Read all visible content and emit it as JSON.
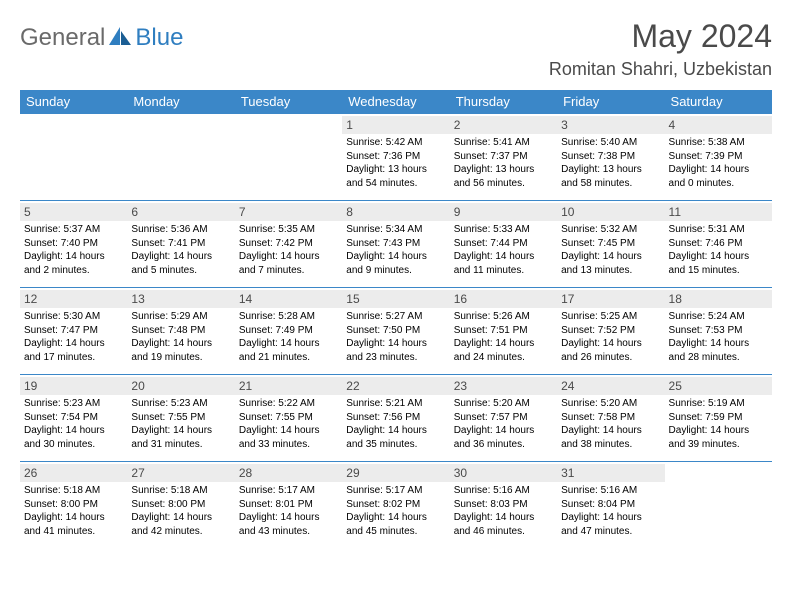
{
  "logo": {
    "general": "General",
    "blue": "Blue"
  },
  "title": "May 2024",
  "location": "Romitan Shahri, Uzbekistan",
  "colors": {
    "header_bg": "#3b87c8",
    "header_text": "#ffffff",
    "daynum_bg": "#ececec",
    "border": "#3b87c8",
    "logo_gray": "#6a6a6a",
    "logo_blue": "#2f7ec0",
    "title_color": "#4a4a4a"
  },
  "days_of_week": [
    "Sunday",
    "Monday",
    "Tuesday",
    "Wednesday",
    "Thursday",
    "Friday",
    "Saturday"
  ],
  "weeks": [
    [
      {
        "n": "",
        "lines": []
      },
      {
        "n": "",
        "lines": []
      },
      {
        "n": "",
        "lines": []
      },
      {
        "n": "1",
        "lines": [
          "Sunrise: 5:42 AM",
          "Sunset: 7:36 PM",
          "Daylight: 13 hours and 54 minutes."
        ]
      },
      {
        "n": "2",
        "lines": [
          "Sunrise: 5:41 AM",
          "Sunset: 7:37 PM",
          "Daylight: 13 hours and 56 minutes."
        ]
      },
      {
        "n": "3",
        "lines": [
          "Sunrise: 5:40 AM",
          "Sunset: 7:38 PM",
          "Daylight: 13 hours and 58 minutes."
        ]
      },
      {
        "n": "4",
        "lines": [
          "Sunrise: 5:38 AM",
          "Sunset: 7:39 PM",
          "Daylight: 14 hours and 0 minutes."
        ]
      }
    ],
    [
      {
        "n": "5",
        "lines": [
          "Sunrise: 5:37 AM",
          "Sunset: 7:40 PM",
          "Daylight: 14 hours and 2 minutes."
        ]
      },
      {
        "n": "6",
        "lines": [
          "Sunrise: 5:36 AM",
          "Sunset: 7:41 PM",
          "Daylight: 14 hours and 5 minutes."
        ]
      },
      {
        "n": "7",
        "lines": [
          "Sunrise: 5:35 AM",
          "Sunset: 7:42 PM",
          "Daylight: 14 hours and 7 minutes."
        ]
      },
      {
        "n": "8",
        "lines": [
          "Sunrise: 5:34 AM",
          "Sunset: 7:43 PM",
          "Daylight: 14 hours and 9 minutes."
        ]
      },
      {
        "n": "9",
        "lines": [
          "Sunrise: 5:33 AM",
          "Sunset: 7:44 PM",
          "Daylight: 14 hours and 11 minutes."
        ]
      },
      {
        "n": "10",
        "lines": [
          "Sunrise: 5:32 AM",
          "Sunset: 7:45 PM",
          "Daylight: 14 hours and 13 minutes."
        ]
      },
      {
        "n": "11",
        "lines": [
          "Sunrise: 5:31 AM",
          "Sunset: 7:46 PM",
          "Daylight: 14 hours and 15 minutes."
        ]
      }
    ],
    [
      {
        "n": "12",
        "lines": [
          "Sunrise: 5:30 AM",
          "Sunset: 7:47 PM",
          "Daylight: 14 hours and 17 minutes."
        ]
      },
      {
        "n": "13",
        "lines": [
          "Sunrise: 5:29 AM",
          "Sunset: 7:48 PM",
          "Daylight: 14 hours and 19 minutes."
        ]
      },
      {
        "n": "14",
        "lines": [
          "Sunrise: 5:28 AM",
          "Sunset: 7:49 PM",
          "Daylight: 14 hours and 21 minutes."
        ]
      },
      {
        "n": "15",
        "lines": [
          "Sunrise: 5:27 AM",
          "Sunset: 7:50 PM",
          "Daylight: 14 hours and 23 minutes."
        ]
      },
      {
        "n": "16",
        "lines": [
          "Sunrise: 5:26 AM",
          "Sunset: 7:51 PM",
          "Daylight: 14 hours and 24 minutes."
        ]
      },
      {
        "n": "17",
        "lines": [
          "Sunrise: 5:25 AM",
          "Sunset: 7:52 PM",
          "Daylight: 14 hours and 26 minutes."
        ]
      },
      {
        "n": "18",
        "lines": [
          "Sunrise: 5:24 AM",
          "Sunset: 7:53 PM",
          "Daylight: 14 hours and 28 minutes."
        ]
      }
    ],
    [
      {
        "n": "19",
        "lines": [
          "Sunrise: 5:23 AM",
          "Sunset: 7:54 PM",
          "Daylight: 14 hours and 30 minutes."
        ]
      },
      {
        "n": "20",
        "lines": [
          "Sunrise: 5:23 AM",
          "Sunset: 7:55 PM",
          "Daylight: 14 hours and 31 minutes."
        ]
      },
      {
        "n": "21",
        "lines": [
          "Sunrise: 5:22 AM",
          "Sunset: 7:55 PM",
          "Daylight: 14 hours and 33 minutes."
        ]
      },
      {
        "n": "22",
        "lines": [
          "Sunrise: 5:21 AM",
          "Sunset: 7:56 PM",
          "Daylight: 14 hours and 35 minutes."
        ]
      },
      {
        "n": "23",
        "lines": [
          "Sunrise: 5:20 AM",
          "Sunset: 7:57 PM",
          "Daylight: 14 hours and 36 minutes."
        ]
      },
      {
        "n": "24",
        "lines": [
          "Sunrise: 5:20 AM",
          "Sunset: 7:58 PM",
          "Daylight: 14 hours and 38 minutes."
        ]
      },
      {
        "n": "25",
        "lines": [
          "Sunrise: 5:19 AM",
          "Sunset: 7:59 PM",
          "Daylight: 14 hours and 39 minutes."
        ]
      }
    ],
    [
      {
        "n": "26",
        "lines": [
          "Sunrise: 5:18 AM",
          "Sunset: 8:00 PM",
          "Daylight: 14 hours and 41 minutes."
        ]
      },
      {
        "n": "27",
        "lines": [
          "Sunrise: 5:18 AM",
          "Sunset: 8:00 PM",
          "Daylight: 14 hours and 42 minutes."
        ]
      },
      {
        "n": "28",
        "lines": [
          "Sunrise: 5:17 AM",
          "Sunset: 8:01 PM",
          "Daylight: 14 hours and 43 minutes."
        ]
      },
      {
        "n": "29",
        "lines": [
          "Sunrise: 5:17 AM",
          "Sunset: 8:02 PM",
          "Daylight: 14 hours and 45 minutes."
        ]
      },
      {
        "n": "30",
        "lines": [
          "Sunrise: 5:16 AM",
          "Sunset: 8:03 PM",
          "Daylight: 14 hours and 46 minutes."
        ]
      },
      {
        "n": "31",
        "lines": [
          "Sunrise: 5:16 AM",
          "Sunset: 8:04 PM",
          "Daylight: 14 hours and 47 minutes."
        ]
      },
      {
        "n": "",
        "lines": []
      }
    ]
  ]
}
